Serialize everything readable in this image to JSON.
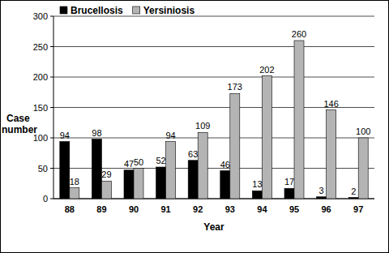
{
  "chart_data": {
    "type": "bar",
    "x_label": "Year",
    "y_label": "Case number",
    "categories": [
      "88",
      "89",
      "90",
      "91",
      "92",
      "93",
      "94",
      "95",
      "96",
      "97"
    ],
    "series": [
      {
        "name": "Brucellosis",
        "color": "#000000",
        "values": [
          94,
          98,
          47,
          52,
          63,
          46,
          13,
          17,
          3,
          2
        ]
      },
      {
        "name": "Yersiniosis",
        "color": "#b4b4b4",
        "values": [
          18,
          29,
          50,
          94,
          109,
          173,
          202,
          260,
          146,
          100
        ]
      }
    ],
    "ylim": [
      0,
      300
    ],
    "yticks": [
      0,
      50,
      100,
      150,
      200,
      250,
      300
    ],
    "grid": true,
    "legend": "top-left",
    "data_labels": true
  }
}
